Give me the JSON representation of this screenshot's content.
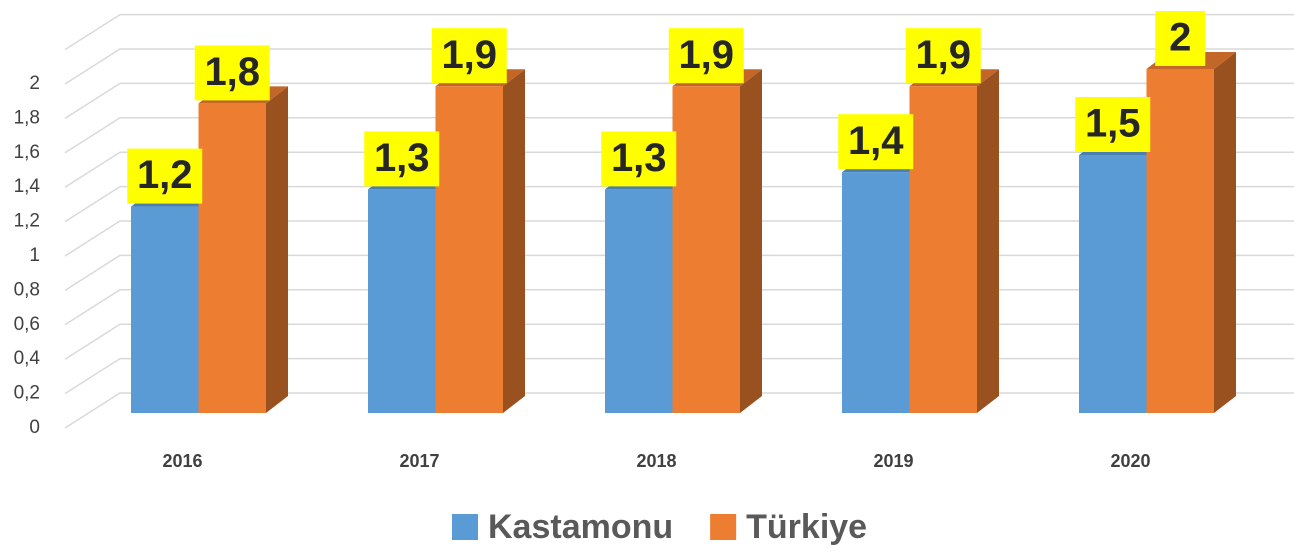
{
  "chart_data": {
    "type": "bar3d",
    "categories": [
      "2016",
      "2017",
      "2018",
      "2019",
      "2020"
    ],
    "series": [
      {
        "name": "Kastamonu",
        "color": "#5b9bd5",
        "values": [
          1.2,
          1.3,
          1.3,
          1.4,
          1.5
        ],
        "value_labels": [
          "1,2",
          "1,3",
          "1,3",
          "1,4",
          "1,5"
        ]
      },
      {
        "name": "Türkiye",
        "color": "#ed7d31",
        "values": [
          1.8,
          1.9,
          1.9,
          1.9,
          2
        ],
        "value_labels": [
          "1,8",
          "1,9",
          "1,9",
          "1,9",
          "2"
        ]
      }
    ],
    "ylim": [
      0,
      2.2
    ],
    "yticks": [
      0,
      {
        "value": 0.2,
        "label": "0,2"
      },
      {
        "value": 0.4,
        "label": "0,4"
      },
      {
        "value": 0.6,
        "label": "0,6"
      },
      {
        "value": 0.8,
        "label": "0,8"
      },
      1,
      {
        "value": 1.2,
        "label": "1,2"
      },
      {
        "value": 1.4,
        "label": "1,4"
      },
      {
        "value": 1.6,
        "label": "1,6"
      },
      {
        "value": 1.8,
        "label": "1,8"
      },
      2
    ],
    "grid": true,
    "legend": "bottom"
  }
}
